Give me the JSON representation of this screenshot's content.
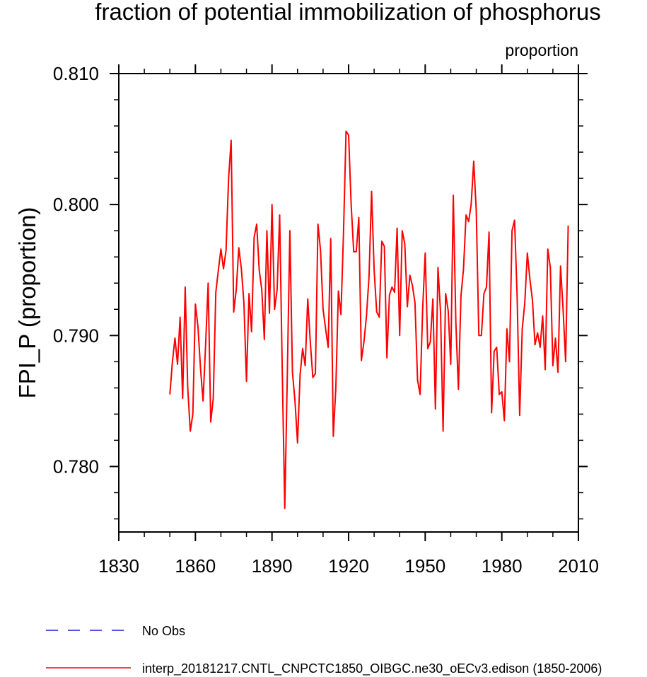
{
  "chart_data": {
    "type": "line",
    "title": "fraction of potential immobilization of phosphorus",
    "units_label": "proportion",
    "ylabel": "FPI_P  (proportion)",
    "xlabel": "",
    "xlim": [
      1830,
      2010
    ],
    "ylim": [
      0.775,
      0.81
    ],
    "x_ticks": [
      1830,
      1860,
      1890,
      1920,
      1950,
      1980,
      2010
    ],
    "x_tick_labels": [
      "1830",
      "1860",
      "1890",
      "1920",
      "1950",
      "1980",
      "2010"
    ],
    "y_ticks": [
      0.78,
      0.79,
      0.8,
      0.81
    ],
    "y_tick_labels": [
      "0.780",
      "0.790",
      "0.800",
      "0.810"
    ],
    "legend": [
      {
        "label": "No Obs",
        "color": "#1f1fd0",
        "dash": "dashed"
      },
      {
        "label": "interp_20181217.CNTL_CNPCTC1850_OIBGC.ne30_oECv3.edison (1850-2006)",
        "color": "#ff0000",
        "dash": "solid"
      }
    ],
    "series": [
      {
        "name": "interp_20181217.CNTL_CNPCTC1850_OIBGC.ne30_oECv3.edison (1850-2006)",
        "color": "#ff0000",
        "x": [
          1850,
          1851,
          1852,
          1853,
          1854,
          1855,
          1856,
          1857,
          1858,
          1859,
          1860,
          1861,
          1862,
          1863,
          1864,
          1865,
          1866,
          1867,
          1868,
          1869,
          1870,
          1871,
          1872,
          1873,
          1874,
          1875,
          1876,
          1877,
          1878,
          1879,
          1880,
          1881,
          1882,
          1883,
          1884,
          1885,
          1886,
          1887,
          1888,
          1889,
          1890,
          1891,
          1892,
          1893,
          1894,
          1895,
          1896,
          1897,
          1898,
          1899,
          1900,
          1901,
          1902,
          1903,
          1904,
          1905,
          1906,
          1907,
          1908,
          1909,
          1910,
          1911,
          1912,
          1913,
          1914,
          1915,
          1916,
          1917,
          1918,
          1919,
          1920,
          1921,
          1922,
          1923,
          1924,
          1925,
          1926,
          1927,
          1928,
          1929,
          1930,
          1931,
          1932,
          1933,
          1934,
          1935,
          1936,
          1937,
          1938,
          1939,
          1940,
          1941,
          1942,
          1943,
          1944,
          1945,
          1946,
          1947,
          1948,
          1949,
          1950,
          1951,
          1952,
          1953,
          1954,
          1955,
          1956,
          1957,
          1958,
          1959,
          1960,
          1961,
          1962,
          1963,
          1964,
          1965,
          1966,
          1967,
          1968,
          1969,
          1970,
          1971,
          1972,
          1973,
          1974,
          1975,
          1976,
          1977,
          1978,
          1979,
          1980,
          1981,
          1982,
          1983,
          1984,
          1985,
          1986,
          1987,
          1988,
          1989,
          1990,
          1991,
          1992,
          1993,
          1994,
          1995,
          1996,
          1997,
          1998,
          1999,
          2000,
          2001,
          2002,
          2003,
          2004,
          2005,
          2006
        ],
        "values": [
          0.7855,
          0.788,
          0.7898,
          0.7878,
          0.7914,
          0.7852,
          0.7937,
          0.786,
          0.7827,
          0.784,
          0.7924,
          0.7907,
          0.7875,
          0.785,
          0.7893,
          0.794,
          0.7834,
          0.7852,
          0.7933,
          0.795,
          0.7966,
          0.7951,
          0.7965,
          0.802,
          0.8049,
          0.7918,
          0.7935,
          0.7967,
          0.7951,
          0.7925,
          0.7865,
          0.7932,
          0.7903,
          0.7975,
          0.7985,
          0.795,
          0.7935,
          0.7897,
          0.798,
          0.7917,
          0.8,
          0.792,
          0.7935,
          0.7992,
          0.7875,
          0.7768,
          0.787,
          0.798,
          0.7872,
          0.785,
          0.7818,
          0.787,
          0.789,
          0.7877,
          0.7928,
          0.7895,
          0.7868,
          0.7871,
          0.7985,
          0.7965,
          0.792,
          0.7905,
          0.7891,
          0.7974,
          0.7823,
          0.786,
          0.7934,
          0.7916,
          0.7978,
          0.8056,
          0.8053,
          0.8,
          0.7964,
          0.7964,
          0.799,
          0.7881,
          0.7895,
          0.7915,
          0.7945,
          0.801,
          0.795,
          0.7918,
          0.7914,
          0.7972,
          0.7968,
          0.7883,
          0.7931,
          0.7937,
          0.7933,
          0.7982,
          0.79,
          0.798,
          0.797,
          0.7922,
          0.7946,
          0.7938,
          0.7925,
          0.7866,
          0.7855,
          0.792,
          0.7963,
          0.789,
          0.7895,
          0.7928,
          0.7844,
          0.7952,
          0.7918,
          0.7827,
          0.7932,
          0.7919,
          0.7878,
          0.8007,
          0.791,
          0.7859,
          0.793,
          0.7951,
          0.7992,
          0.7987,
          0.8,
          0.8033,
          0.7995,
          0.79,
          0.79,
          0.7932,
          0.7937,
          0.7979,
          0.7841,
          0.7888,
          0.7891,
          0.7855,
          0.7857,
          0.7835,
          0.7905,
          0.788,
          0.798,
          0.7988,
          0.793,
          0.7839,
          0.7905,
          0.7925,
          0.7963,
          0.7943,
          0.7927,
          0.7893,
          0.7902,
          0.7891,
          0.7915,
          0.7874,
          0.7966,
          0.7952,
          0.7877,
          0.7898,
          0.7872,
          0.7953,
          0.792,
          0.788,
          0.7984
        ]
      }
    ]
  }
}
